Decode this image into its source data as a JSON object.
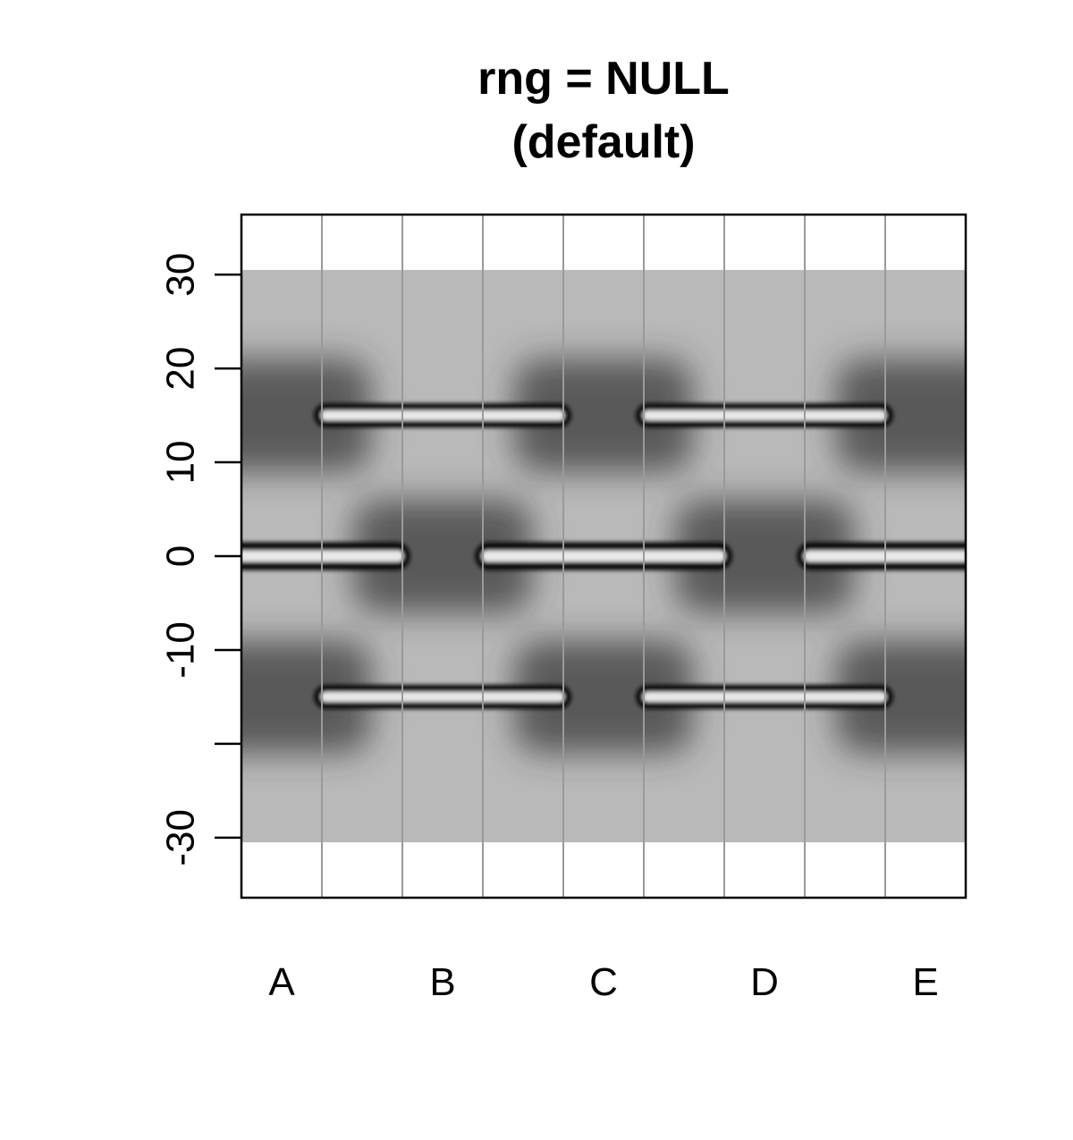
{
  "chart_data": {
    "type": "heatmap",
    "title_lines": [
      "rng = NULL",
      "(default)"
    ],
    "xlabel": "",
    "ylabel": "",
    "categories": [
      "A",
      "B",
      "C",
      "D",
      "E"
    ],
    "xlim": [
      0,
      9
    ],
    "ylim": [
      -36.4,
      36.4
    ],
    "y_ticks": [
      30,
      20,
      10,
      0,
      -10,
      -20,
      -30
    ],
    "y_tick_labels": [
      "30",
      "20",
      "10",
      "0",
      "-10",
      "",
      "-30"
    ],
    "vertical_gridlines_x": [
      1,
      2,
      3,
      4,
      5,
      6,
      7,
      8
    ],
    "grid": true,
    "colormap": "grayscale",
    "data_range": [
      -30.5,
      30.5
    ],
    "category_centers": {
      "A": 0.5,
      "B": 2.5,
      "C": 4.5,
      "D": 6.5,
      "E": 8.5
    },
    "bands": [
      {
        "category": "A",
        "y_center": 0,
        "half_width": 1.5,
        "style": "tight"
      },
      {
        "category": "C",
        "y_center": 0,
        "half_width": 1.5,
        "style": "tight"
      },
      {
        "category": "E",
        "y_center": 0,
        "half_width": 1.5,
        "style": "tight"
      },
      {
        "category": "B",
        "y_center": 15,
        "half_width": 1.3,
        "style": "tight"
      },
      {
        "category": "B",
        "y_center": -15,
        "half_width": 1.3,
        "style": "tight"
      },
      {
        "category": "D",
        "y_center": 15,
        "half_width": 1.3,
        "style": "tight"
      },
      {
        "category": "D",
        "y_center": -15,
        "half_width": 1.3,
        "style": "tight"
      },
      {
        "category": "A",
        "y_center": 15,
        "half_width": 6,
        "style": "diffuse"
      },
      {
        "category": "A",
        "y_center": -15,
        "half_width": 6,
        "style": "diffuse"
      },
      {
        "category": "C",
        "y_center": 15,
        "half_width": 6,
        "style": "diffuse"
      },
      {
        "category": "C",
        "y_center": -15,
        "half_width": 6,
        "style": "diffuse"
      },
      {
        "category": "E",
        "y_center": 15,
        "half_width": 6,
        "style": "diffuse"
      },
      {
        "category": "E",
        "y_center": -15,
        "half_width": 6,
        "style": "diffuse"
      },
      {
        "category": "B",
        "y_center": 0,
        "half_width": 6,
        "style": "diffuse"
      },
      {
        "category": "D",
        "y_center": 0,
        "half_width": 6,
        "style": "diffuse"
      }
    ]
  }
}
